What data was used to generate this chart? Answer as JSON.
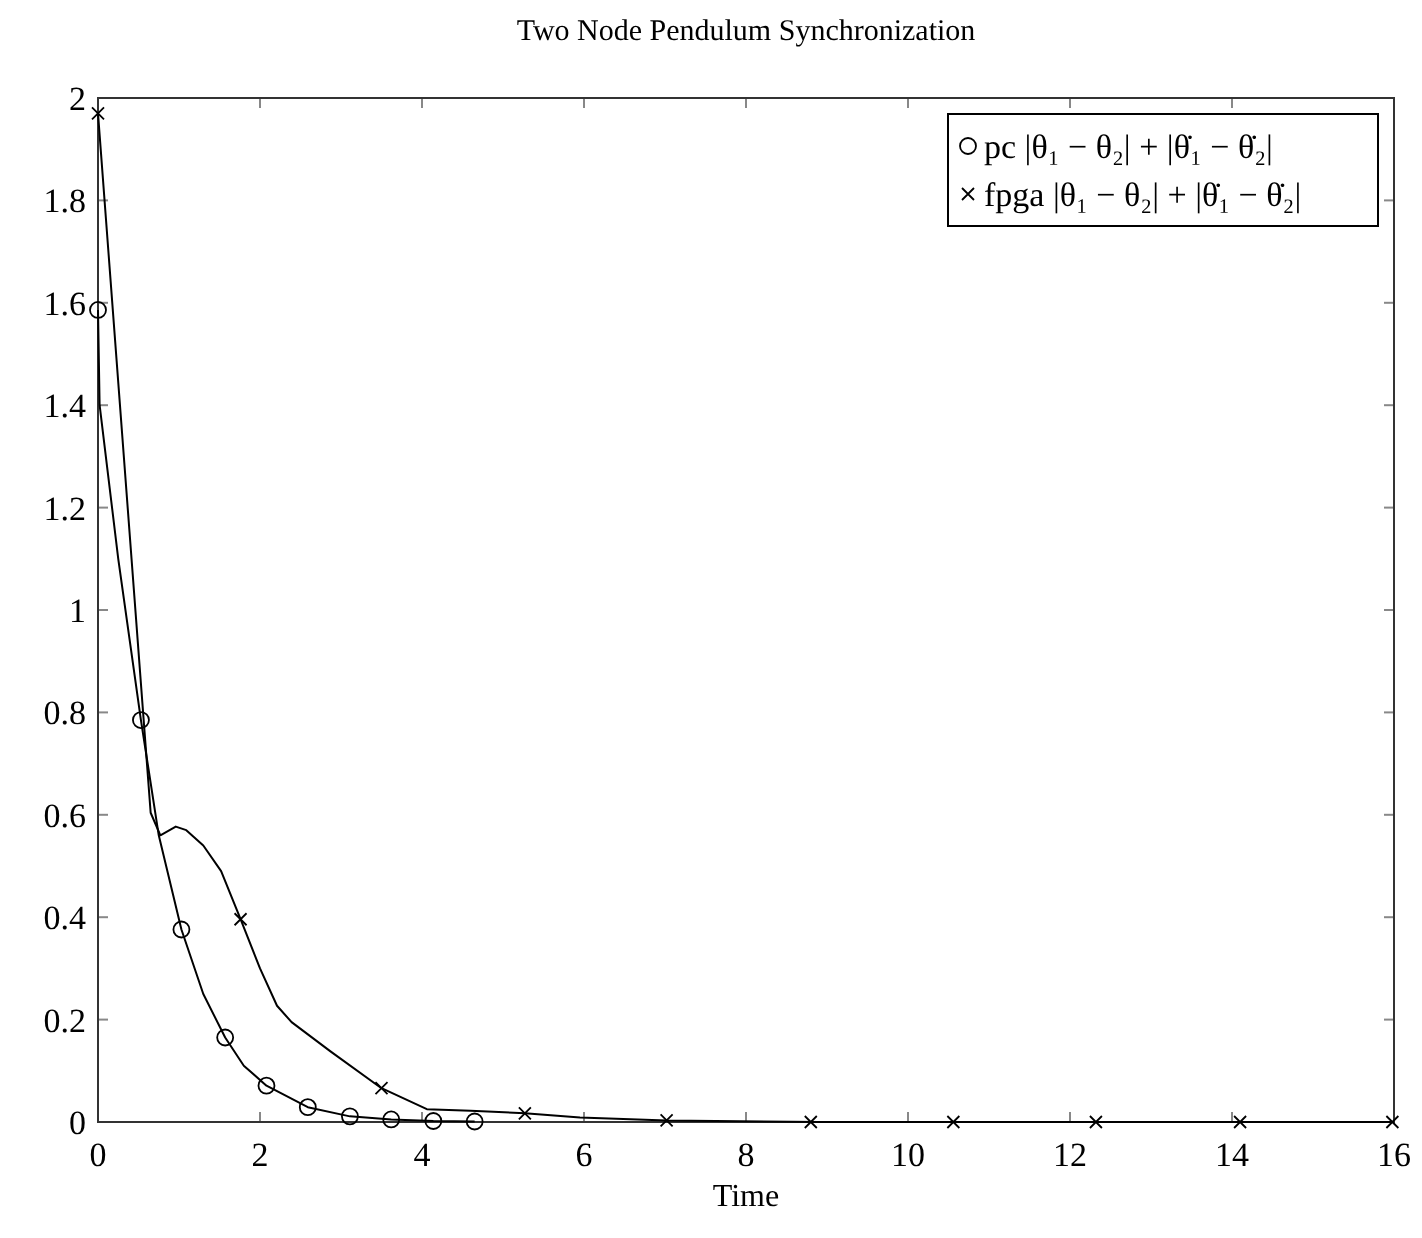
{
  "chart_data": {
    "type": "line",
    "title": "Two Node Pendulum Synchronization",
    "xlabel": "Time",
    "xlim": [
      0,
      16
    ],
    "ylim": [
      0,
      2
    ],
    "xticks": [
      0,
      2,
      4,
      6,
      8,
      10,
      12,
      14,
      16
    ],
    "yticks": [
      0,
      0.2,
      0.4,
      0.6,
      0.8,
      1,
      1.2,
      1.4,
      1.6,
      1.8,
      2
    ],
    "grid": false,
    "legend": "top right",
    "line_style": "solid",
    "series": [
      {
        "type": "line",
        "color": "#000000",
        "marker": "none",
        "x": [
          0,
          0.02,
          0.25,
          0.53,
          0.75,
          1.03,
          1.3,
          1.57,
          1.8,
          2.08,
          2.59,
          3.11,
          3.62,
          4.14,
          4.65
        ],
        "values": [
          1.586,
          1.4,
          1.1,
          0.785,
          0.56,
          0.376,
          0.25,
          0.165,
          0.11,
          0.071,
          0.029,
          0.011,
          0.005,
          0.002,
          0.001
        ]
      },
      {
        "type": "line",
        "color": "#000000",
        "marker": "none",
        "x": [
          0,
          0.65,
          0.77,
          0.96,
          1.09,
          1.3,
          1.52,
          1.76,
          2.0,
          2.21,
          2.39,
          2.87,
          3.5,
          4.06,
          4.6,
          5.27,
          5.95,
          7.02,
          8.9,
          16
        ],
        "values": [
          1.97,
          0.604,
          0.56,
          0.577,
          0.57,
          0.54,
          0.49,
          0.396,
          0.3,
          0.227,
          0.195,
          0.138,
          0.066,
          0.025,
          0.022,
          0.017,
          0.009,
          0.003,
          0,
          0
        ]
      },
      {
        "type": "scatter",
        "name": "pc |θ₁ − θ₂| + |θ̇₁ − θ̇₂|",
        "color": "#000000",
        "marker": "circle",
        "x": [
          0,
          0.53,
          1.03,
          1.57,
          2.08,
          2.59,
          3.11,
          3.62,
          4.14,
          4.65
        ],
        "values": [
          1.586,
          0.785,
          0.376,
          0.165,
          0.071,
          0.029,
          0.011,
          0.005,
          0.002,
          0.001
        ]
      },
      {
        "type": "scatter",
        "name": "fpga |θ₁ − θ₂| + |θ̇₁ − θ̇₂|",
        "color": "#000000",
        "marker": "cross",
        "x": [
          0,
          1.76,
          3.5,
          5.27,
          7.02,
          8.8,
          10.56,
          12.32,
          14.1,
          15.98
        ],
        "values": [
          1.97,
          0.396,
          0.066,
          0.017,
          0.003,
          0,
          0,
          0,
          0,
          0
        ]
      }
    ]
  }
}
